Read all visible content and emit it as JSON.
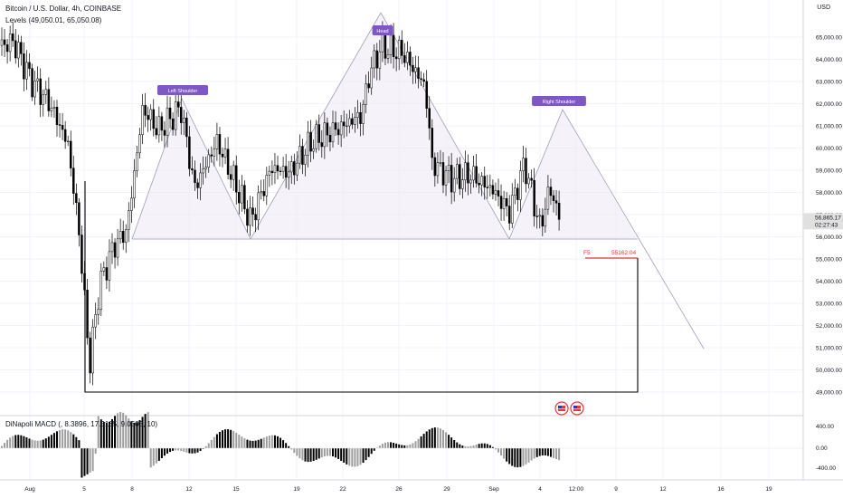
{
  "header": {
    "symbol_line": "Bitcoin / U.S. Dollar, 4h, COINBASE",
    "indicator_line": "Levels (49,050.01, 65,050.08)",
    "currency": "USD"
  },
  "price_axis": {
    "labels": [
      "65,000.00",
      "64,000.00",
      "63,000.00",
      "62,000.00",
      "61,000.00",
      "60,000.00",
      "59,000.00",
      "58,000.00",
      "57,000.00",
      "56,000.00",
      "55,000.00",
      "54,000.00",
      "53,000.00",
      "52,000.00",
      "51,000.00",
      "50,000.00",
      "49,000.00"
    ],
    "last_price": "56,865.17",
    "countdown": "02:27:43"
  },
  "time_axis": {
    "labels": [
      "Aug",
      "5",
      "8",
      "12",
      "15",
      "19",
      "22",
      "26",
      "29",
      "Sep",
      "4",
      "12:00",
      "9",
      "12",
      "16",
      "19"
    ]
  },
  "annotations": {
    "head": "Head",
    "left_shoulder": "Left Shoulder",
    "right_shoulder": "Right Shoulder",
    "fib_tag": "F5",
    "fib_value": "55162.04"
  },
  "macd": {
    "title": "DiNapoli MACD (, 8.3896, 17.5185, 9.0503, 10)",
    "axis_labels": [
      "400.00",
      "0.00",
      "-400.00"
    ]
  },
  "colors": {
    "accent": "#7e57c2",
    "pattern_fill": "#ede7f6",
    "fib_line": "#e53935",
    "candle": "#000000",
    "grid": "#f0f3fa"
  },
  "chart_data": {
    "type": "candlestick",
    "y_unit": "USD",
    "ylim": [
      48500,
      65600
    ],
    "pattern": "head and shoulders",
    "key_points": [
      {
        "label": "Left Shoulder",
        "x": "Aug 10",
        "y": 62100
      },
      {
        "label": "Head",
        "x": "Aug 24",
        "y": 65050
      },
      {
        "label": "Right Shoulder",
        "x": "Sep 6",
        "y": 61800
      }
    ],
    "neckline_low": 55900,
    "levels": [
      49050.01,
      65050.08
    ],
    "fib_F5": 55162.04,
    "last_price": 56865.17,
    "macd_ylim": [
      -400,
      400
    ]
  }
}
